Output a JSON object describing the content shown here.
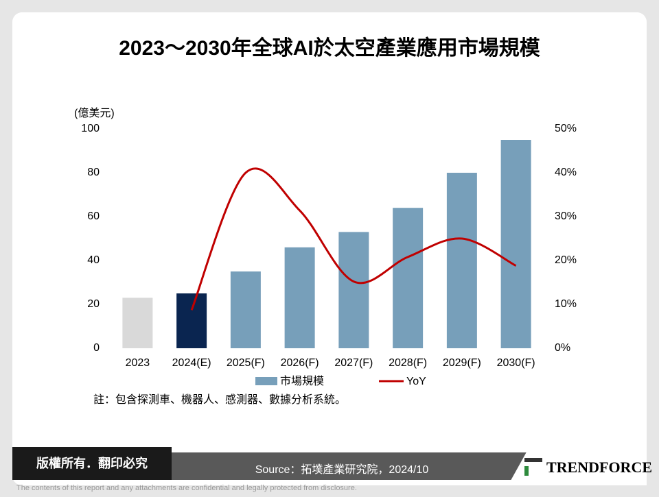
{
  "chart_data": {
    "type": "bar",
    "title": "2023～2030年全球AI於太空產業應用市場規模",
    "y_label": "(億美元)",
    "categories": [
      "2023",
      "2024(E)",
      "2025(F)",
      "2026(F)",
      "2027(F)",
      "2028(F)",
      "2029(F)",
      "2030(F)"
    ],
    "series": [
      {
        "name": "市場規模",
        "type": "bar",
        "color": "#779fba",
        "colors": [
          "#d9d9d9",
          "#0a2550",
          "#779fba",
          "#779fba",
          "#779fba",
          "#779fba",
          "#779fba",
          "#779fba"
        ],
        "values": [
          23,
          25,
          35,
          46,
          53,
          64,
          80,
          95
        ]
      },
      {
        "name": "YoY",
        "type": "line",
        "axis": "y2",
        "color": "#c00000",
        "values": [
          null,
          8.7,
          40,
          31.4,
          15.2,
          20.8,
          25,
          18.8
        ]
      }
    ],
    "ylim": [
      0,
      100
    ],
    "yticks": [
      0,
      20,
      40,
      60,
      80,
      100
    ],
    "y2lim": [
      0,
      50
    ],
    "y2ticks": [
      {
        "value": 0,
        "label": "0%"
      },
      {
        "value": 10,
        "label": "10%"
      },
      {
        "value": 20,
        "label": "20%"
      },
      {
        "value": 30,
        "label": "30%"
      },
      {
        "value": 40,
        "label": "40%"
      },
      {
        "value": 50,
        "label": "50%"
      }
    ],
    "grid": false,
    "note": "註：包含探測車、機器人、感測器、數據分析系統。"
  },
  "footer": {
    "copyright": "版權所有．翻印必究",
    "source": "Source：拓墣產業研究院，2024/10",
    "logo": "TRENDFORCE",
    "disclaimer": "The contents of this report and any attachments are confidential and legally protected from disclosure."
  }
}
